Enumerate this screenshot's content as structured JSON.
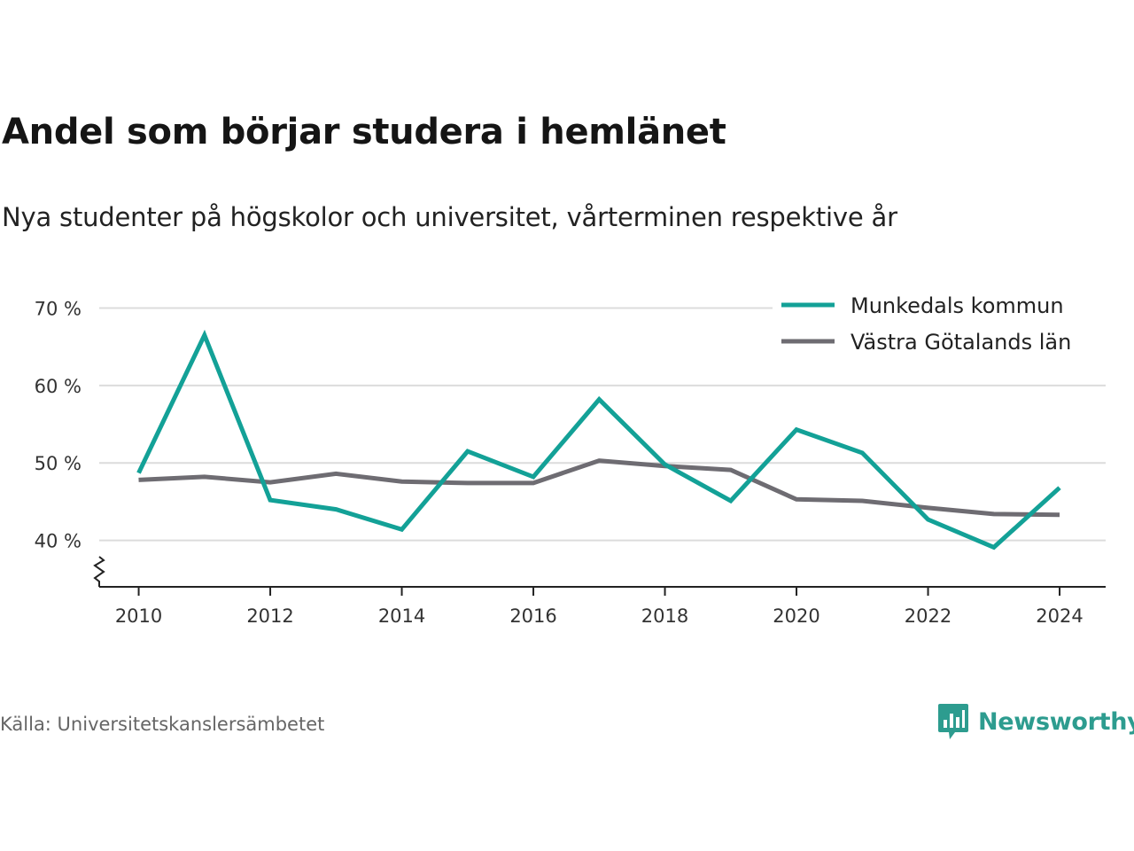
{
  "title": "Andel som börjar studera i hemlänet",
  "subtitle": "Nya studenter på högskolor och universitet, vårterminen respektive år",
  "source": "Källa: Universitetskanslersämbetet",
  "brand": {
    "name": "Newsworthy",
    "icon": "newsworthy-chart-bubble-icon",
    "color": "#2d9c8f"
  },
  "chart_data": {
    "type": "line",
    "x": [
      2010,
      2011,
      2012,
      2013,
      2014,
      2015,
      2016,
      2017,
      2018,
      2019,
      2020,
      2021,
      2022,
      2023,
      2024
    ],
    "x_ticks": [
      "2010",
      "2012",
      "2014",
      "2016",
      "2018",
      "2020",
      "2022",
      "2024"
    ],
    "y_ticks": [
      "40 %",
      "50 %",
      "60 %",
      "70 %"
    ],
    "y_tick_values": [
      40,
      50,
      60,
      70
    ],
    "ylim": [
      34,
      72
    ],
    "xlim": [
      2009.4,
      2024.7
    ],
    "y_axis_break": true,
    "grid": "horizontal",
    "legend_position": "top-right",
    "series": [
      {
        "name": "Munkedals kommun",
        "color": "#13a197",
        "values": [
          48.7,
          66.5,
          45.2,
          44.0,
          41.4,
          51.5,
          48.2,
          58.2,
          49.8,
          45.1,
          54.3,
          51.3,
          42.7,
          39.1,
          46.8
        ]
      },
      {
        "name": "Västra Götalands län",
        "color": "#6e6c72",
        "values": [
          47.8,
          48.2,
          47.5,
          48.6,
          47.6,
          47.4,
          47.4,
          50.3,
          49.6,
          49.1,
          45.3,
          45.1,
          44.2,
          43.4,
          43.3
        ]
      }
    ]
  }
}
